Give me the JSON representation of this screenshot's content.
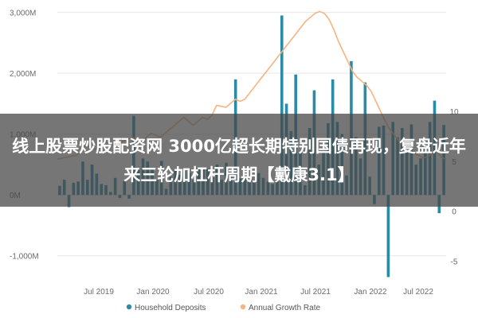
{
  "headline": "线上股票炒股配资网 3000亿超长期特别国债再现，复盘近年来三轮加杠杆周期【戴康3.1】",
  "colors": {
    "bars": "#2b8aa5",
    "line": "#f5b482",
    "grid": "#e6e6e6"
  },
  "chart_data": {
    "type": "bar+line",
    "left_axis": {
      "range": [
        -1500,
        3100
      ],
      "ticks": [
        -1000,
        0,
        1000,
        2000,
        3000
      ],
      "tick_labels": [
        "-1,000M",
        "0M",
        "1,000M",
        "2,000M",
        "3,000M"
      ]
    },
    "right_axis": {
      "range": [
        -7.5,
        20.5
      ],
      "ticks": [
        -5,
        0,
        5,
        10
      ],
      "tick_labels": [
        "-5",
        "0",
        "5",
        "10"
      ]
    },
    "x_axis": {
      "labels": [
        "Jul 2019",
        "Jan 2020",
        "Jul 2020",
        "Jan 2021",
        "Jul 2021",
        "Jan 2022",
        "Jul 2022"
      ]
    },
    "legend": {
      "placement": "bottom",
      "entries": [
        "Household Deposits",
        "Annual Growth Rate"
      ]
    },
    "series": [
      {
        "name": "Household Deposits",
        "type": "bar",
        "values": [
          150,
          250,
          -200,
          200,
          220,
          550,
          250,
          500,
          350,
          180,
          160,
          50,
          280,
          -50,
          230,
          -60,
          1300,
          420,
          600,
          550,
          420,
          250,
          560,
          100,
          300,
          400,
          330,
          400,
          360,
          250,
          450,
          420,
          430,
          350,
          500,
          250,
          530,
          300,
          1900,
          270,
          300,
          220,
          220,
          360,
          280,
          220,
          180,
          420,
          2950,
          1500,
          1050,
          1980,
          700,
          160,
          1100,
          1720,
          500,
          700,
          1180,
          1900,
          1200,
          1000,
          320,
          2200,
          950,
          600,
          1850,
          300,
          -150,
          1120,
          1140,
          -1350,
          1200,
          950,
          1100,
          740,
          1160,
          500,
          600,
          780,
          1200,
          1550,
          -300,
          1150
        ]
      },
      {
        "name": "Annual Growth Rate",
        "type": "line",
        "values": [
          5.2,
          5.3,
          5.4,
          5.5,
          5.6,
          6.0,
          6.6,
          6.4,
          6.2,
          6.5,
          7.0,
          6.8,
          6.6,
          6.8,
          7.0,
          7.2,
          7.4,
          7.2,
          7.0,
          7.4,
          7.8,
          7.6,
          7.4,
          7.8,
          8.2,
          8.6,
          9.0,
          9.4,
          9.0,
          8.6,
          9.0,
          9.4,
          9.2,
          9.6,
          10.6,
          10.5,
          10.4,
          10.8,
          11.2,
          11.0,
          11.2,
          11.8,
          12.4,
          13.0,
          13.6,
          14.2,
          14.8,
          15.4,
          16.0,
          16.6,
          17.2,
          17.8,
          18.4,
          19.0,
          19.4,
          19.8,
          20.0,
          19.8,
          19.2,
          18.2,
          17.0,
          16.0,
          15.0,
          14.0,
          13.4,
          13.0,
          12.6,
          12.0,
          11.0,
          10.0,
          9.0,
          8.2,
          7.6,
          7.0,
          6.5,
          6.2,
          5.8,
          5.6,
          5.4,
          5.4,
          5.8,
          6.0,
          5.4,
          5.2
        ]
      }
    ]
  }
}
